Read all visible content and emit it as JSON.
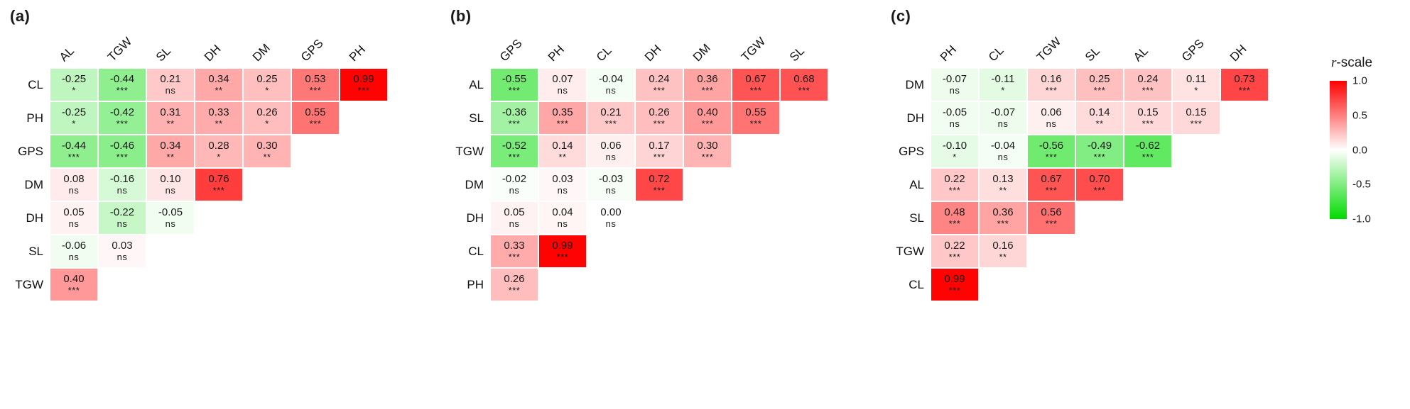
{
  "legend": {
    "title_italic": "r",
    "title_rest": "-scale",
    "ticks": [
      "1.0",
      "0.5",
      "0.0",
      "-0.5",
      "-1.0"
    ],
    "color_high": "#FF0000",
    "color_mid": "#FFFFFF",
    "color_low": "#00DB00",
    "range": [
      -1,
      1
    ]
  },
  "chart_data": [
    {
      "type": "heatmap",
      "panel_label": "(a)",
      "columns": [
        "AL",
        "TGW",
        "SL",
        "DH",
        "DM",
        "GPS",
        "PH"
      ],
      "rows": [
        {
          "label": "CL",
          "cells": [
            {
              "v": "-0.25",
              "s": "*"
            },
            {
              "v": "-0.44",
              "s": "***"
            },
            {
              "v": "0.21",
              "s": "ns"
            },
            {
              "v": "0.34",
              "s": "**"
            },
            {
              "v": "0.25",
              "s": "*"
            },
            {
              "v": "0.53",
              "s": "***"
            },
            {
              "v": "0.99",
              "s": "***"
            }
          ]
        },
        {
          "label": "PH",
          "cells": [
            {
              "v": "-0.25",
              "s": "*"
            },
            {
              "v": "-0.42",
              "s": "***"
            },
            {
              "v": "0.31",
              "s": "**"
            },
            {
              "v": "0.33",
              "s": "**"
            },
            {
              "v": "0.26",
              "s": "*"
            },
            {
              "v": "0.55",
              "s": "***"
            }
          ]
        },
        {
          "label": "GPS",
          "cells": [
            {
              "v": "-0.44",
              "s": "***"
            },
            {
              "v": "-0.46",
              "s": "***"
            },
            {
              "v": "0.34",
              "s": "**"
            },
            {
              "v": "0.28",
              "s": "*"
            },
            {
              "v": "0.30",
              "s": "**"
            }
          ]
        },
        {
          "label": "DM",
          "cells": [
            {
              "v": "0.08",
              "s": "ns"
            },
            {
              "v": "-0.16",
              "s": "ns"
            },
            {
              "v": "0.10",
              "s": "ns"
            },
            {
              "v": "0.76",
              "s": "***"
            }
          ]
        },
        {
          "label": "DH",
          "cells": [
            {
              "v": "0.05",
              "s": "ns"
            },
            {
              "v": "-0.22",
              "s": "ns"
            },
            {
              "v": "-0.05",
              "s": "ns"
            }
          ]
        },
        {
          "label": "SL",
          "cells": [
            {
              "v": "-0.06",
              "s": "ns"
            },
            {
              "v": "0.03",
              "s": "ns"
            }
          ]
        },
        {
          "label": "TGW",
          "cells": [
            {
              "v": "0.40",
              "s": "***"
            }
          ]
        }
      ]
    },
    {
      "type": "heatmap",
      "panel_label": "(b)",
      "columns": [
        "GPS",
        "PH",
        "CL",
        "DH",
        "DM",
        "TGW",
        "SL"
      ],
      "rows": [
        {
          "label": "AL",
          "cells": [
            {
              "v": "-0.55",
              "s": "***"
            },
            {
              "v": "0.07",
              "s": "ns"
            },
            {
              "v": "-0.04",
              "s": "ns"
            },
            {
              "v": "0.24",
              "s": "***"
            },
            {
              "v": "0.36",
              "s": "***"
            },
            {
              "v": "0.67",
              "s": "***"
            },
            {
              "v": "0.68",
              "s": "***"
            }
          ]
        },
        {
          "label": "SL",
          "cells": [
            {
              "v": "-0.36",
              "s": "***"
            },
            {
              "v": "0.35",
              "s": "***"
            },
            {
              "v": "0.21",
              "s": "***"
            },
            {
              "v": "0.26",
              "s": "***"
            },
            {
              "v": "0.40",
              "s": "***"
            },
            {
              "v": "0.55",
              "s": "***"
            }
          ]
        },
        {
          "label": "TGW",
          "cells": [
            {
              "v": "-0.52",
              "s": "***"
            },
            {
              "v": "0.14",
              "s": "**"
            },
            {
              "v": "0.06",
              "s": "ns"
            },
            {
              "v": "0.17",
              "s": "***"
            },
            {
              "v": "0.30",
              "s": "***"
            }
          ]
        },
        {
          "label": "DM",
          "cells": [
            {
              "v": "-0.02",
              "s": "ns"
            },
            {
              "v": "0.03",
              "s": "ns"
            },
            {
              "v": "-0.03",
              "s": "ns"
            },
            {
              "v": "0.72",
              "s": "***"
            }
          ]
        },
        {
          "label": "DH",
          "cells": [
            {
              "v": "0.05",
              "s": "ns"
            },
            {
              "v": "0.04",
              "s": "ns"
            },
            {
              "v": "0.00",
              "s": "ns"
            }
          ]
        },
        {
          "label": "CL",
          "cells": [
            {
              "v": "0.33",
              "s": "***"
            },
            {
              "v": "0.99",
              "s": "***"
            }
          ]
        },
        {
          "label": "PH",
          "cells": [
            {
              "v": "0.26",
              "s": "***"
            }
          ]
        }
      ]
    },
    {
      "type": "heatmap",
      "panel_label": "(c)",
      "columns": [
        "PH",
        "CL",
        "TGW",
        "SL",
        "AL",
        "GPS",
        "DH"
      ],
      "rows": [
        {
          "label": "DM",
          "cells": [
            {
              "v": "-0.07",
              "s": "ns"
            },
            {
              "v": "-0.11",
              "s": "*"
            },
            {
              "v": "0.16",
              "s": "***"
            },
            {
              "v": "0.25",
              "s": "***"
            },
            {
              "v": "0.24",
              "s": "***"
            },
            {
              "v": "0.11",
              "s": "*"
            },
            {
              "v": "0.73",
              "s": "***"
            }
          ]
        },
        {
          "label": "DH",
          "cells": [
            {
              "v": "-0.05",
              "s": "ns"
            },
            {
              "v": "-0.07",
              "s": "ns"
            },
            {
              "v": "0.06",
              "s": "ns"
            },
            {
              "v": "0.14",
              "s": "**"
            },
            {
              "v": "0.15",
              "s": "***"
            },
            {
              "v": "0.15",
              "s": "***"
            }
          ]
        },
        {
          "label": "GPS",
          "cells": [
            {
              "v": "-0.10",
              "s": "*"
            },
            {
              "v": "-0.04",
              "s": "ns"
            },
            {
              "v": "-0.56",
              "s": "***"
            },
            {
              "v": "-0.49",
              "s": "***"
            },
            {
              "v": "-0.62",
              "s": "***"
            }
          ]
        },
        {
          "label": "AL",
          "cells": [
            {
              "v": "0.22",
              "s": "***"
            },
            {
              "v": "0.13",
              "s": "**"
            },
            {
              "v": "0.67",
              "s": "***"
            },
            {
              "v": "0.70",
              "s": "***"
            }
          ]
        },
        {
          "label": "SL",
          "cells": [
            {
              "v": "0.48",
              "s": "***"
            },
            {
              "v": "0.36",
              "s": "***"
            },
            {
              "v": "0.56",
              "s": "***"
            }
          ]
        },
        {
          "label": "TGW",
          "cells": [
            {
              "v": "0.22",
              "s": "***"
            },
            {
              "v": "0.16",
              "s": "**"
            }
          ]
        },
        {
          "label": "CL",
          "cells": [
            {
              "v": "0.99",
              "s": "***"
            }
          ]
        }
      ]
    }
  ]
}
